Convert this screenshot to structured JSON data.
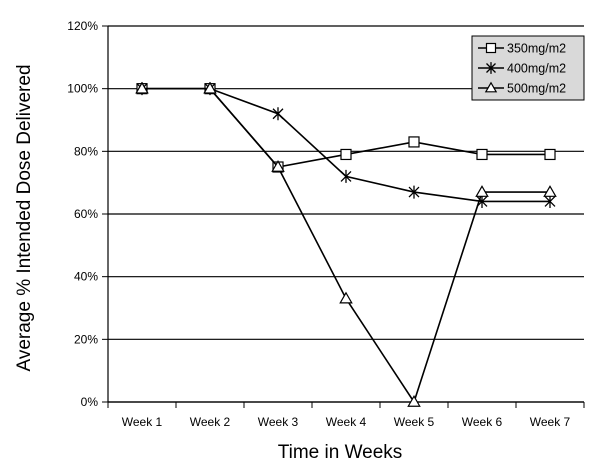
{
  "chart_data": {
    "type": "line",
    "xlabel": "Time in Weeks",
    "ylabel": "Average % Intended Dose Delivered",
    "categories": [
      "Week 1",
      "Week 2",
      "Week 3",
      "Week 4",
      "Week 5",
      "Week 6",
      "Week 7"
    ],
    "ylim": [
      0,
      120
    ],
    "y_ticks": [
      "0%",
      "20%",
      "40%",
      "60%",
      "80%",
      "100%",
      "120%"
    ],
    "grid": "horizontal",
    "legend_position": "top-right",
    "series": [
      {
        "name": "350mg/m2",
        "marker": "square",
        "values": [
          100,
          100,
          75,
          79,
          83,
          79,
          79
        ]
      },
      {
        "name": "400mg/m2",
        "marker": "asterisk",
        "values": [
          100,
          100,
          92,
          72,
          67,
          64,
          64
        ]
      },
      {
        "name": "500mg/m2",
        "marker": "triangle",
        "values": [
          100,
          100,
          75,
          33,
          0,
          67,
          67
        ]
      }
    ],
    "colors": {
      "line": "#000000",
      "grid": "#000000",
      "legend_bg": "#d9d9d9",
      "marker_fill": "#ffffff"
    }
  }
}
